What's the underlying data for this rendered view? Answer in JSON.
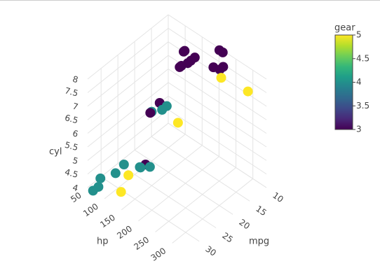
{
  "chart_data": {
    "type": "scatter3d",
    "x_label": "mpg",
    "y_label": "hp",
    "z_label": "cyl",
    "color_label": "gear",
    "x": [
      21,
      21,
      22.8,
      21.4,
      18.7,
      18.1,
      14.3,
      24.4,
      22.8,
      19.2,
      17.8,
      16.4,
      17.3,
      15.2,
      10.4,
      10.4,
      14.7,
      32.4,
      30.4,
      33.9,
      21.5,
      15.5,
      15.2,
      13.3,
      19.2,
      27.3,
      26,
      30.4,
      15.8,
      19.7,
      15,
      21.4
    ],
    "y": [
      110,
      110,
      93,
      110,
      175,
      105,
      245,
      62,
      95,
      123,
      123,
      180,
      180,
      180,
      205,
      215,
      230,
      66,
      52,
      65,
      97,
      150,
      150,
      245,
      175,
      66,
      91,
      113,
      264,
      175,
      335,
      109
    ],
    "z": [
      6,
      6,
      4,
      6,
      8,
      6,
      8,
      4,
      4,
      6,
      6,
      8,
      8,
      8,
      8,
      8,
      8,
      4,
      4,
      4,
      4,
      8,
      8,
      8,
      8,
      4,
      4,
      4,
      8,
      6,
      8,
      4
    ],
    "color_values": [
      4,
      4,
      4,
      3,
      3,
      3,
      3,
      4,
      4,
      4,
      4,
      3,
      3,
      3,
      3,
      3,
      3,
      4,
      4,
      4,
      3,
      3,
      3,
      3,
      3,
      4,
      5,
      5,
      5,
      5,
      5,
      4
    ],
    "xlim": [
      10,
      34
    ],
    "ylim": [
      50,
      340
    ],
    "zlim": [
      4,
      8
    ],
    "colorlim": [
      3,
      5
    ],
    "xticks": [
      10,
      15,
      20,
      25,
      30
    ],
    "yticks": [
      50,
      100,
      150,
      200,
      250,
      300
    ],
    "zticks": [
      4,
      4.5,
      5,
      5.5,
      6,
      6.5,
      7,
      7.5,
      8
    ],
    "colorticks": [
      3,
      3.5,
      4,
      4.5,
      5
    ],
    "colorscale": [
      "#440154",
      "#482878",
      "#3e4989",
      "#31688e",
      "#26828e",
      "#1f9e89",
      "#35b779",
      "#6ece58",
      "#b5de2b",
      "#fde725"
    ],
    "grid": true
  }
}
